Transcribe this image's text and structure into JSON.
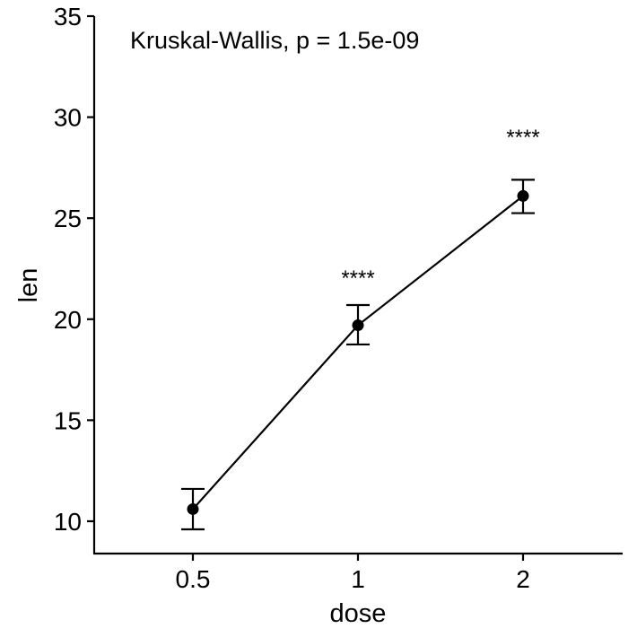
{
  "chart_data": {
    "type": "line",
    "title": "",
    "xlabel": "dose",
    "ylabel": "len",
    "categories": [
      "0.5",
      "1",
      "2"
    ],
    "series": [
      {
        "values": [
          10.6,
          19.7,
          26.1
        ],
        "error_upper": [
          11.6,
          20.7,
          26.9
        ],
        "error_lower": [
          9.6,
          18.75,
          25.25
        ]
      }
    ],
    "significance_labels": [
      "",
      "****",
      "****"
    ],
    "annotation": "Kruskal-Wallis, p = 1.5e-09",
    "ylim": [
      8.4,
      35
    ],
    "yticks": [
      "10",
      "15",
      "20",
      "25",
      "30",
      "35"
    ],
    "grid": false,
    "legend": "none"
  }
}
